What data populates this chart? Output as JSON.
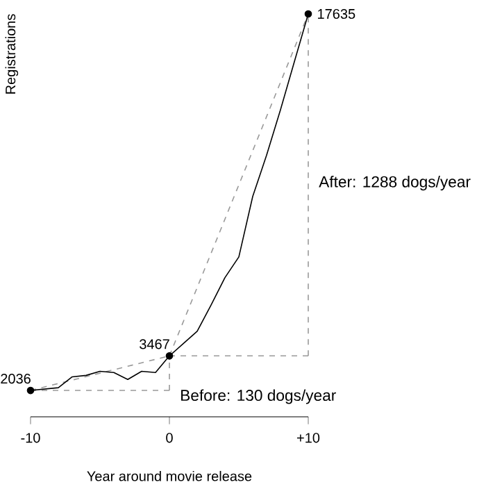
{
  "chart_data": {
    "type": "line",
    "xlabel": "Year around movie release",
    "ylabel": "Registrations",
    "xlim": [
      -10,
      10
    ],
    "xticks": [
      -10,
      0,
      {
        "value": 10,
        "label": "+10"
      }
    ],
    "grid": false,
    "series": [
      {
        "line_style": "dashed",
        "color": "#999999",
        "x": [
          -10,
          0
        ],
        "values": [
          2036,
          3467
        ]
      },
      {
        "line_style": "dashed",
        "color": "#999999",
        "x": [
          -10,
          0
        ],
        "values": [
          2036,
          2036
        ]
      },
      {
        "line_style": "dashed",
        "color": "#999999",
        "x": [
          0,
          0
        ],
        "values": [
          2036,
          3467
        ]
      },
      {
        "line_style": "dashed",
        "color": "#999999",
        "x": [
          0,
          10
        ],
        "values": [
          3467,
          17635
        ]
      },
      {
        "line_style": "dashed",
        "color": "#999999",
        "x": [
          0,
          10
        ],
        "values": [
          3467,
          3467
        ]
      },
      {
        "line_style": "dashed",
        "color": "#999999",
        "x": [
          10,
          10
        ],
        "values": [
          3467,
          17635
        ]
      },
      {
        "line_style": "solid",
        "color": "#000000",
        "x": [
          -10,
          -8,
          -7,
          -6,
          -5,
          -4,
          -3,
          -2,
          -1,
          0,
          1,
          2,
          3,
          4,
          5,
          6,
          7,
          8,
          9,
          10
        ],
        "values": [
          2036,
          2150,
          2600,
          2660,
          2830,
          2780,
          2490,
          2830,
          2780,
          3467,
          3974,
          4487,
          5570,
          6710,
          7565,
          10073,
          11783,
          13664,
          15659,
          17635
        ]
      },
      {
        "type": "scatter",
        "marker": "circle",
        "color": "#000000",
        "x": [
          -10,
          0,
          10
        ],
        "values": [
          2036,
          3467,
          17635
        ],
        "value_labels": [
          "2036",
          "3467",
          "17635"
        ]
      }
    ],
    "annotations": [
      "Before: 130 dogs/year",
      "After: 1288 dogs/year"
    ]
  }
}
